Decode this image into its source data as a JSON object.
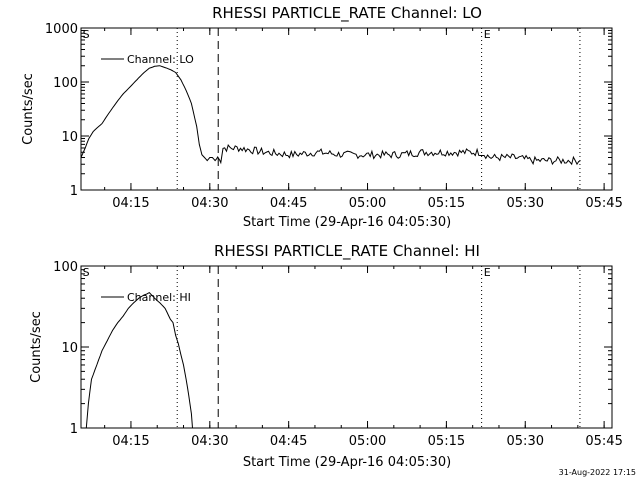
{
  "footer": {
    "timestamp": "31-Aug-2022 17:15"
  },
  "chart_data": [
    {
      "type": "line",
      "title": "RHESSI PARTICLE_RATE Channel: LO",
      "xlabel": "Start Time (29-Apr-16 04:05:30)",
      "ylabel": "Counts/sec",
      "yscale": "log",
      "ylim": [
        1,
        1000
      ],
      "xlim_minutes": [
        0,
        101
      ],
      "xticks": [
        {
          "t": 9.5,
          "label": "04:15"
        },
        {
          "t": 24.5,
          "label": "04:30"
        },
        {
          "t": 39.5,
          "label": "04:45"
        },
        {
          "t": 54.5,
          "label": "05:00"
        },
        {
          "t": 69.5,
          "label": "05:15"
        },
        {
          "t": 84.5,
          "label": "05:30"
        },
        {
          "t": 99.5,
          "label": "05:45"
        }
      ],
      "yticks": [
        {
          "v": 1,
          "label": "1"
        },
        {
          "v": 10,
          "label": "10"
        },
        {
          "v": 100,
          "label": "100"
        },
        {
          "v": 1000,
          "label": "1000"
        }
      ],
      "vlines": [
        {
          "t": 18.3,
          "style": "dotted"
        },
        {
          "t": 26.1,
          "style": "dashed"
        },
        {
          "t": 76.2,
          "style": "dotted"
        },
        {
          "t": 94.9,
          "style": "dotted"
        }
      ],
      "markers": [
        {
          "t": 0.3,
          "label": "S"
        },
        {
          "t": 76.6,
          "label": "E"
        }
      ],
      "legend": "Channel: LO",
      "series": [
        {
          "name": "Channel: LO",
          "t": [
            0.0,
            0.8,
            1.5,
            2.3,
            3.0,
            4.0,
            5.0,
            6.0,
            7.0,
            8.0,
            9.0,
            10.0,
            11.0,
            12.0,
            13.0,
            14.0,
            15.0,
            16.0,
            17.0,
            18.0,
            19.0,
            20.0,
            21.0,
            22.0,
            22.5,
            23.0,
            23.5,
            24.0,
            24.5,
            25.0,
            25.5,
            26.0,
            26.4,
            26.6,
            27.0,
            30.0,
            35.0,
            40.0,
            45.0,
            50.0,
            55.0,
            60.0,
            65.0,
            70.0,
            74.0,
            76.0,
            78.0,
            80.0,
            82.0,
            84.0,
            86.0,
            88.0,
            90.0,
            92.0,
            94.0,
            95.0
          ],
          "values": [
            4,
            6,
            9,
            12,
            14,
            17,
            24,
            33,
            45,
            60,
            75,
            95,
            120,
            150,
            180,
            195,
            200,
            185,
            170,
            150,
            110,
            70,
            40,
            15,
            7,
            4.5,
            4,
            3.5,
            4,
            4,
            3.5,
            4,
            4,
            3.5,
            6,
            6,
            5,
            4.5,
            5,
            4.5,
            4.5,
            4.5,
            5,
            5,
            5,
            5,
            4,
            4,
            4,
            3.8,
            3.5,
            3.5,
            3.5,
            3.5,
            3.5,
            3.5
          ]
        }
      ]
    },
    {
      "type": "line",
      "title": "RHESSI PARTICLE_RATE Channel: HI",
      "xlabel": "Start Time (29-Apr-16 04:05:30)",
      "ylabel": "Counts/sec",
      "yscale": "log",
      "ylim": [
        1,
        100
      ],
      "xlim_minutes": [
        0,
        101
      ],
      "xticks": [
        {
          "t": 9.5,
          "label": "04:15"
        },
        {
          "t": 24.5,
          "label": "04:30"
        },
        {
          "t": 39.5,
          "label": "04:45"
        },
        {
          "t": 54.5,
          "label": "05:00"
        },
        {
          "t": 69.5,
          "label": "05:15"
        },
        {
          "t": 84.5,
          "label": "05:30"
        },
        {
          "t": 99.5,
          "label": "05:45"
        }
      ],
      "yticks": [
        {
          "v": 1,
          "label": "1"
        },
        {
          "v": 10,
          "label": "10"
        },
        {
          "v": 100,
          "label": "100"
        }
      ],
      "vlines": [
        {
          "t": 18.3,
          "style": "dotted"
        },
        {
          "t": 26.1,
          "style": "dashed"
        },
        {
          "t": 76.2,
          "style": "dotted"
        },
        {
          "t": 94.9,
          "style": "dotted"
        }
      ],
      "markers": [
        {
          "t": 0.3,
          "label": "S"
        },
        {
          "t": 76.6,
          "label": "E"
        }
      ],
      "legend": "Channel: HI",
      "series": [
        {
          "name": "Channel: HI",
          "t": [
            1.0,
            1.4,
            2.0,
            3.0,
            4.0,
            5.0,
            6.0,
            7.0,
            8.0,
            9.0,
            10.0,
            11.0,
            12.0,
            12.5,
            13.0,
            14.0,
            15.0,
            16.0,
            17.0,
            17.5,
            18.0,
            18.5,
            19.0,
            19.5,
            20.0,
            20.5,
            21.0,
            21.2
          ],
          "values": [
            1.0,
            2.0,
            4.0,
            6.0,
            9.0,
            12.0,
            16.0,
            20.0,
            24.0,
            30.0,
            35.0,
            40.0,
            44.0,
            45.0,
            47.0,
            40.0,
            35.0,
            30.0,
            22.0,
            20.0,
            14.0,
            11.0,
            8.0,
            6.0,
            4.0,
            2.5,
            1.5,
            1.0
          ]
        }
      ]
    }
  ]
}
